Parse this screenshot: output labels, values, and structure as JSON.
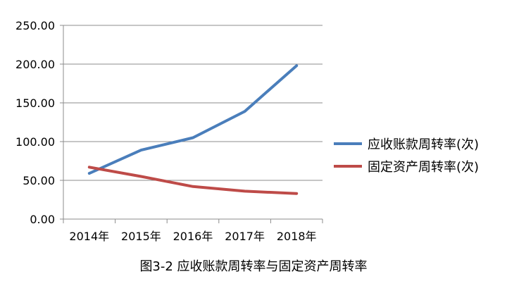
{
  "chart_data": {
    "type": "line",
    "title": "图3-2  应收账款周转率与固定资产周转率",
    "x": [
      "2014年",
      "2015年",
      "2016年",
      "2017年",
      "2018年"
    ],
    "series": [
      {
        "name": "应收账款周转率(次)",
        "color": "#4a7ebb",
        "values": [
          59,
          89,
          105,
          139,
          198
        ]
      },
      {
        "name": "固定资产周转率(次)",
        "color": "#be4b48",
        "values": [
          67,
          55,
          42,
          36,
          33
        ]
      }
    ],
    "yticks": [
      "0.00",
      "50.00",
      "100.00",
      "150.00",
      "200.00",
      "250.00"
    ],
    "ylim": [
      0,
      250
    ],
    "grid": true,
    "legend": "right"
  }
}
